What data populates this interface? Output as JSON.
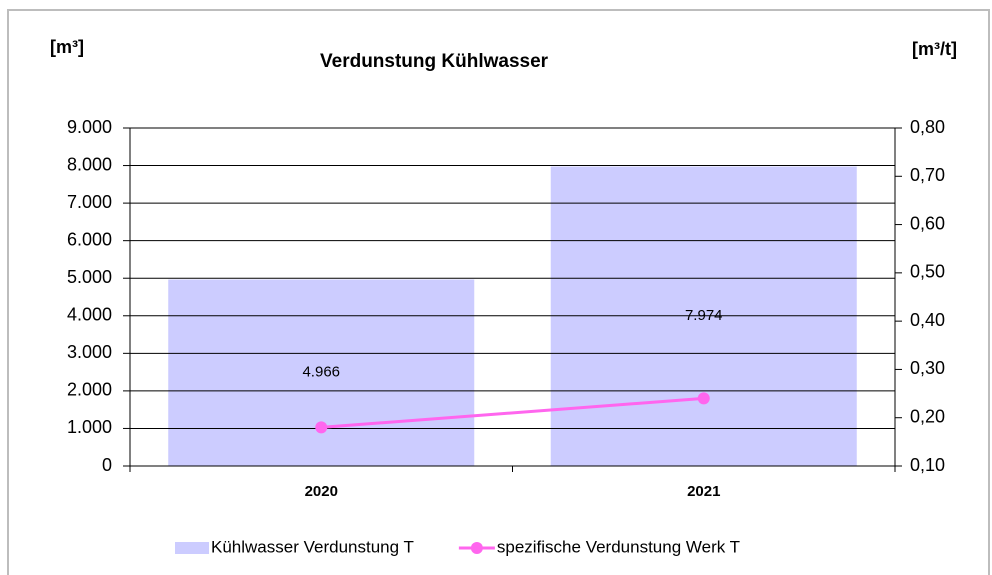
{
  "chart_data": {
    "type": "bar",
    "title": "Verdunstung Kühlwasser",
    "ylabel": "[m³]",
    "y2label": "[m³/t]",
    "categories": [
      "2020",
      "2021"
    ],
    "series": [
      {
        "name": "Kühlwasser Verdunstung T",
        "type": "bar",
        "color": "#ccccff",
        "values": [
          4966,
          7974
        ],
        "value_labels": [
          "4.966",
          "7.974"
        ]
      },
      {
        "name": "spezifische Verdunstung Werk T",
        "type": "line",
        "axis": "y2",
        "color": "#ff66ee",
        "values": [
          0.18,
          0.24
        ]
      }
    ],
    "ylim": [
      0,
      9000
    ],
    "yticks": [
      0,
      {
        "value": 1000,
        "label": "1.000"
      },
      {
        "value": 2000,
        "label": "2.000"
      },
      {
        "value": 3000,
        "label": "3.000"
      },
      {
        "value": 4000,
        "label": "4.000"
      },
      {
        "value": 5000,
        "label": "5.000"
      },
      {
        "value": 6000,
        "label": "6.000"
      },
      {
        "value": 7000,
        "label": "7.000"
      },
      {
        "value": 8000,
        "label": "8.000"
      },
      {
        "value": 9000,
        "label": "9.000"
      }
    ],
    "y2lim": [
      0.1,
      0.8
    ],
    "y2ticks": [
      {
        "value": 0.1,
        "label": "0,10"
      },
      {
        "value": 0.2,
        "label": "0,20"
      },
      {
        "value": 0.3,
        "label": "0,30"
      },
      {
        "value": 0.4,
        "label": "0,40"
      },
      {
        "value": 0.5,
        "label": "0,50"
      },
      {
        "value": 0.6,
        "label": "0,60"
      },
      {
        "value": 0.7,
        "label": "0,70"
      },
      {
        "value": 0.8,
        "label": "0,80"
      }
    ],
    "grid": true,
    "legend": "bottom"
  }
}
